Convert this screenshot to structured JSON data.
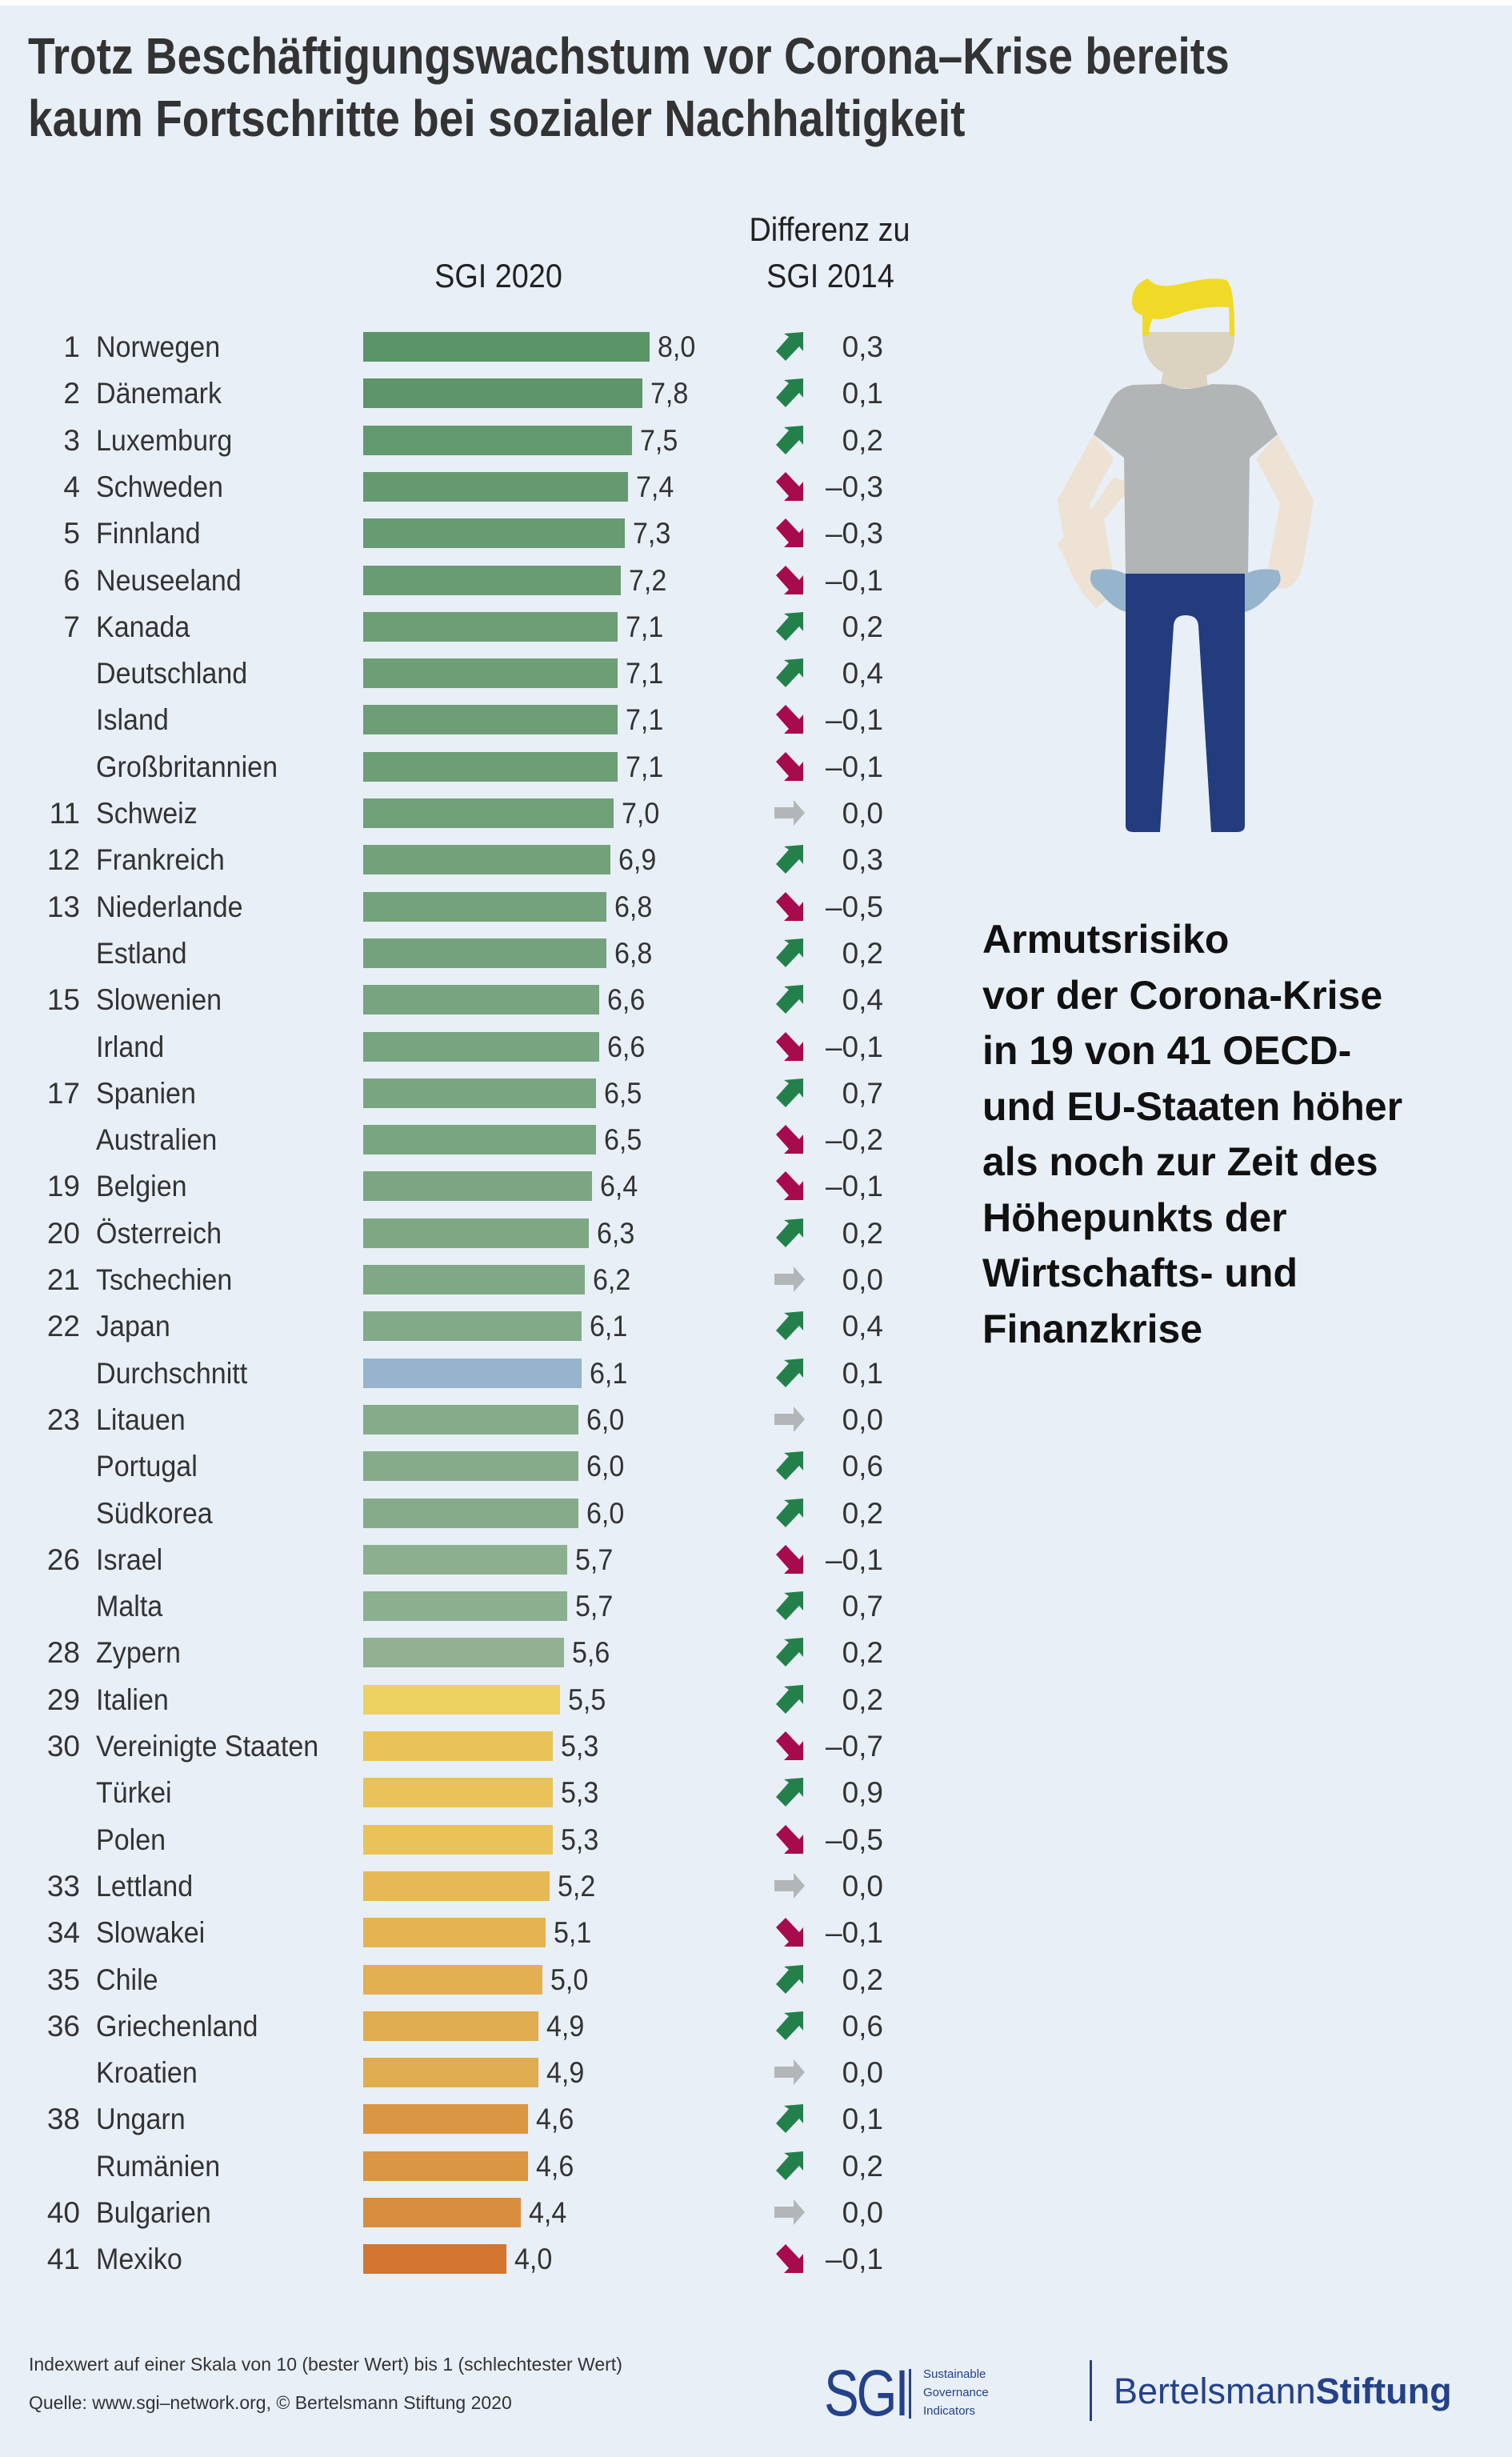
{
  "header": {
    "title_line1": "Trotz Beschäftigungswachstum vor Corona–Krise bereits",
    "title_line2": "kaum Fortschritte bei sozialer Nachhaltigkeit"
  },
  "columns": {
    "score_label": "SGI 2020",
    "diff_label_line1": "Differenz zu",
    "diff_label_line2": "SGI 2014"
  },
  "side_text": [
    "Armutsrisiko",
    "vor der Corona-Krise",
    "in 19 von 41 OECD-",
    "und EU-Staaten höher",
    "als noch zur Zeit des",
    "Höhepunkts der",
    "Wirtschafts- und",
    "Finanzkrise"
  ],
  "footer": {
    "scale_note": "Indexwert auf einer Skala von 10 (bester Wert) bis 1 (schlechtester Wert)",
    "source": "Quelle: www.sgi–network.org, © Bertelsmann Stiftung 2020",
    "sgi_logo_letters": "SGI",
    "sgi_logo_line1": "Sustainable",
    "sgi_logo_line2": "Governance",
    "sgi_logo_line3": "Indicators",
    "brand_part1": "Bertelsmann",
    "brand_part2": "Stiftung"
  },
  "colors": {
    "background": "#E8EFF7",
    "up": "#24804A",
    "down": "#A80A4E",
    "neutral": "#B3B6B8",
    "average": "#98B3CD",
    "brand": "#24418A",
    "figure_hair": "#F0DA27",
    "figure_skin": "#DCD2C0",
    "figure_arm": "#EDE2D3",
    "figure_shirt": "#B2B5B6",
    "figure_pants": "#233C7E",
    "figure_pocket": "#97B4CD"
  },
  "chart_data": {
    "type": "bar",
    "orientation": "horizontal",
    "title": "Trotz Beschäftigungswachstum vor Corona–Krise bereits kaum Fortschritte bei sozialer Nachhaltigkeit",
    "xlabel": "SGI 2020",
    "secondary_label": "Differenz zu SGI 2014",
    "xlim": [
      0,
      10
    ],
    "grid": false,
    "note": "Indexwert auf einer Skala von 10 (bester Wert) bis 1 (schlechtester Wert)",
    "rows": [
      {
        "rank": "1",
        "country": "Norwegen",
        "score": 8.0,
        "score_label": "8,0",
        "diff": 0.3,
        "diff_label": "0,3",
        "trend": "up",
        "color": "#5B9468"
      },
      {
        "rank": "2",
        "country": "Dänemark",
        "score": 7.8,
        "score_label": "7,8",
        "diff": 0.1,
        "diff_label": "0,1",
        "trend": "up",
        "color": "#5E966A"
      },
      {
        "rank": "3",
        "country": "Luxemburg",
        "score": 7.5,
        "score_label": "7,5",
        "diff": 0.2,
        "diff_label": "0,2",
        "trend": "up",
        "color": "#63996E"
      },
      {
        "rank": "4",
        "country": "Schweden",
        "score": 7.4,
        "score_label": "7,4",
        "diff": -0.3,
        "diff_label": "–0,3",
        "trend": "down",
        "color": "#659A70"
      },
      {
        "rank": "5",
        "country": "Finnland",
        "score": 7.3,
        "score_label": "7,3",
        "diff": -0.3,
        "diff_label": "–0,3",
        "trend": "down",
        "color": "#679B72"
      },
      {
        "rank": "6",
        "country": "Neuseeland",
        "score": 7.2,
        "score_label": "7,2",
        "diff": -0.1,
        "diff_label": "–0,1",
        "trend": "down",
        "color": "#6A9C74"
      },
      {
        "rank": "7",
        "country": "Kanada",
        "score": 7.1,
        "score_label": "7,1",
        "diff": 0.2,
        "diff_label": "0,2",
        "trend": "up",
        "color": "#6D9E76"
      },
      {
        "rank": "",
        "country": "Deutschland",
        "score": 7.1,
        "score_label": "7,1",
        "diff": 0.4,
        "diff_label": "0,4",
        "trend": "up",
        "color": "#6D9E76"
      },
      {
        "rank": "",
        "country": "Island",
        "score": 7.1,
        "score_label": "7,1",
        "diff": -0.1,
        "diff_label": "–0,1",
        "trend": "down",
        "color": "#6D9E76"
      },
      {
        "rank": "",
        "country": "Großbritannien",
        "score": 7.1,
        "score_label": "7,1",
        "diff": -0.1,
        "diff_label": "–0,1",
        "trend": "down",
        "color": "#6D9E76"
      },
      {
        "rank": "11",
        "country": "Schweiz",
        "score": 7.0,
        "score_label": "7,0",
        "diff": 0.0,
        "diff_label": "0,0",
        "trend": "flat",
        "color": "#70A078"
      },
      {
        "rank": "12",
        "country": "Frankreich",
        "score": 6.9,
        "score_label": "6,9",
        "diff": 0.3,
        "diff_label": "0,3",
        "trend": "up",
        "color": "#72A17A"
      },
      {
        "rank": "13",
        "country": "Niederlande",
        "score": 6.8,
        "score_label": "6,8",
        "diff": -0.5,
        "diff_label": "–0,5",
        "trend": "down",
        "color": "#74A27C"
      },
      {
        "rank": "",
        "country": "Estland",
        "score": 6.8,
        "score_label": "6,8",
        "diff": 0.2,
        "diff_label": "0,2",
        "trend": "up",
        "color": "#74A27C"
      },
      {
        "rank": "15",
        "country": "Slowenien",
        "score": 6.6,
        "score_label": "6,6",
        "diff": 0.4,
        "diff_label": "0,4",
        "trend": "up",
        "color": "#78A47F"
      },
      {
        "rank": "",
        "country": "Irland",
        "score": 6.6,
        "score_label": "6,6",
        "diff": -0.1,
        "diff_label": "–0,1",
        "trend": "down",
        "color": "#78A47F"
      },
      {
        "rank": "17",
        "country": "Spanien",
        "score": 6.5,
        "score_label": "6,5",
        "diff": 0.7,
        "diff_label": "0,7",
        "trend": "up",
        "color": "#7AA581"
      },
      {
        "rank": "",
        "country": "Australien",
        "score": 6.5,
        "score_label": "6,5",
        "diff": -0.2,
        "diff_label": "–0,2",
        "trend": "down",
        "color": "#7AA581"
      },
      {
        "rank": "19",
        "country": "Belgien",
        "score": 6.4,
        "score_label": "6,4",
        "diff": -0.1,
        "diff_label": "–0,1",
        "trend": "down",
        "color": "#7CA683"
      },
      {
        "rank": "20",
        "country": "Österreich",
        "score": 6.3,
        "score_label": "6,3",
        "diff": 0.2,
        "diff_label": "0,2",
        "trend": "up",
        "color": "#7EA784"
      },
      {
        "rank": "21",
        "country": "Tschechien",
        "score": 6.2,
        "score_label": "6,2",
        "diff": 0.0,
        "diff_label": "0,0",
        "trend": "flat",
        "color": "#80A886"
      },
      {
        "rank": "22",
        "country": "Japan",
        "score": 6.1,
        "score_label": "6,1",
        "diff": 0.4,
        "diff_label": "0,4",
        "trend": "up",
        "color": "#83AA88"
      },
      {
        "rank": "",
        "country": "Durchschnitt",
        "score": 6.1,
        "score_label": "6,1",
        "diff": 0.1,
        "diff_label": "0,1",
        "trend": "up",
        "color": "#98B3CD",
        "is_average": true
      },
      {
        "rank": "23",
        "country": "Litauen",
        "score": 6.0,
        "score_label": "6,0",
        "diff": 0.0,
        "diff_label": "0,0",
        "trend": "flat",
        "color": "#86AB8A"
      },
      {
        "rank": "",
        "country": "Portugal",
        "score": 6.0,
        "score_label": "6,0",
        "diff": 0.6,
        "diff_label": "0,6",
        "trend": "up",
        "color": "#86AB8A"
      },
      {
        "rank": "",
        "country": "Südkorea",
        "score": 6.0,
        "score_label": "6,0",
        "diff": 0.2,
        "diff_label": "0,2",
        "trend": "up",
        "color": "#86AB8A"
      },
      {
        "rank": "26",
        "country": "Israel",
        "score": 5.7,
        "score_label": "5,7",
        "diff": -0.1,
        "diff_label": "–0,1",
        "trend": "down",
        "color": "#8CAF8F"
      },
      {
        "rank": "",
        "country": "Malta",
        "score": 5.7,
        "score_label": "5,7",
        "diff": 0.7,
        "diff_label": "0,7",
        "trend": "up",
        "color": "#8CAF8F"
      },
      {
        "rank": "28",
        "country": "Zypern",
        "score": 5.6,
        "score_label": "5,6",
        "diff": 0.2,
        "diff_label": "0,2",
        "trend": "up",
        "color": "#91B192"
      },
      {
        "rank": "29",
        "country": "Italien",
        "score": 5.5,
        "score_label": "5,5",
        "diff": 0.2,
        "diff_label": "0,2",
        "trend": "up",
        "color": "#ECD060"
      },
      {
        "rank": "30",
        "country": "Vereinigte Staaten",
        "score": 5.3,
        "score_label": "5,3",
        "diff": -0.7,
        "diff_label": "–0,7",
        "trend": "down",
        "color": "#E8C35A"
      },
      {
        "rank": "",
        "country": "Türkei",
        "score": 5.3,
        "score_label": "5,3",
        "diff": 0.9,
        "diff_label": "0,9",
        "trend": "up",
        "color": "#E8C35A"
      },
      {
        "rank": "",
        "country": "Polen",
        "score": 5.3,
        "score_label": "5,3",
        "diff": -0.5,
        "diff_label": "–0,5",
        "trend": "down",
        "color": "#E8C35A"
      },
      {
        "rank": "33",
        "country": "Lettland",
        "score": 5.2,
        "score_label": "5,2",
        "diff": 0.0,
        "diff_label": "0,0",
        "trend": "flat",
        "color": "#E6B955"
      },
      {
        "rank": "34",
        "country": "Slowakei",
        "score": 5.1,
        "score_label": "5,1",
        "diff": -0.1,
        "diff_label": "–0,1",
        "trend": "down",
        "color": "#E4B352"
      },
      {
        "rank": "35",
        "country": "Chile",
        "score": 5.0,
        "score_label": "5,0",
        "diff": 0.2,
        "diff_label": "0,2",
        "trend": "up",
        "color": "#E2B050"
      },
      {
        "rank": "36",
        "country": "Griechenland",
        "score": 4.9,
        "score_label": "4,9",
        "diff": 0.6,
        "diff_label": "0,6",
        "trend": "up",
        "color": "#E0AC50"
      },
      {
        "rank": "",
        "country": "Kroatien",
        "score": 4.9,
        "score_label": "4,9",
        "diff": 0.0,
        "diff_label": "0,0",
        "trend": "flat",
        "color": "#E0AC50"
      },
      {
        "rank": "38",
        "country": "Ungarn",
        "score": 4.6,
        "score_label": "4,6",
        "diff": 0.1,
        "diff_label": "0,1",
        "trend": "up",
        "color": "#DA9642"
      },
      {
        "rank": "",
        "country": "Rumänien",
        "score": 4.6,
        "score_label": "4,6",
        "diff": 0.2,
        "diff_label": "0,2",
        "trend": "up",
        "color": "#DA9642"
      },
      {
        "rank": "40",
        "country": "Bulgarien",
        "score": 4.4,
        "score_label": "4,4",
        "diff": 0.0,
        "diff_label": "0,0",
        "trend": "flat",
        "color": "#D88E3E"
      },
      {
        "rank": "41",
        "country": "Mexiko",
        "score": 4.0,
        "score_label": "4,0",
        "diff": -0.1,
        "diff_label": "–0,1",
        "trend": "down",
        "color": "#D27632"
      }
    ]
  }
}
